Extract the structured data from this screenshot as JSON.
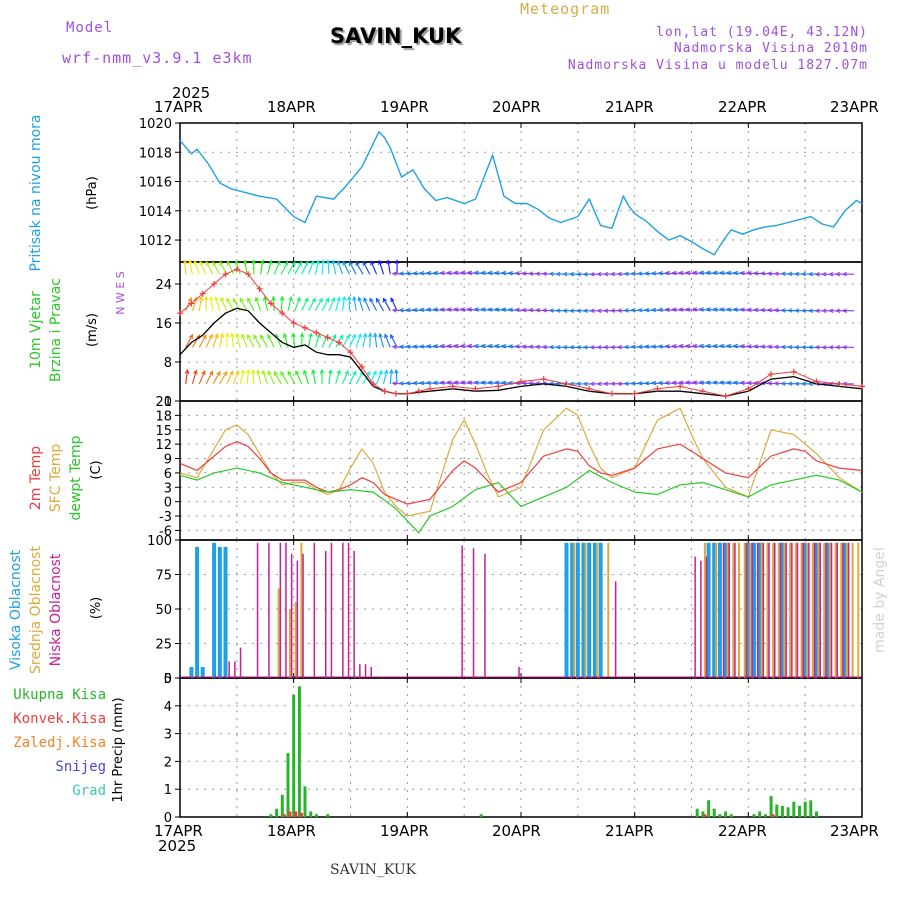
{
  "header": {
    "model_label": "Model",
    "model_name": "wrf-nmm_v3.9.1  e3km",
    "station_title": "SAVIN_KUK",
    "product": "Meteogram",
    "lonlat": "lon,lat (19.04E, 43.12N)",
    "elevation": "Nadmorska Visina 2010m",
    "model_elevation": "Nadmorska Visina u modelu 1827.07m",
    "footer_station": "SAVIN_KUK",
    "credit": "made by Angel"
  },
  "colors": {
    "pressure": "#1ea0e6",
    "wind_speed": "#000000",
    "gust": "#f03c3c",
    "t2m": "#f03c3c",
    "sfc": "#dcaa3c",
    "dewpoint": "#28c828",
    "cloud_high": "#1ea0e6",
    "cloud_mid": "#dcaa3c",
    "cloud_low": "#c81e96",
    "total_precip": "#28b428",
    "conv_precip": "#f03c3c",
    "frozen_precip": "#f08228",
    "snow": "#4646dc",
    "graupel": "#3cc8b4",
    "purple_text": "#a050dc",
    "orange_text": "#dcaa46"
  },
  "chart_data": [
    {
      "id": "pressure",
      "type": "line",
      "title": "Pritisak na nivou mora",
      "ylabel": "(hPa)",
      "ylim": [
        1010.5,
        1020
      ],
      "yticks": [
        1012,
        1014,
        1016,
        1018,
        1020
      ],
      "series": [
        {
          "name": "Pritisak na nivou mora",
          "x": [
            0,
            0.1,
            0.15,
            0.25,
            0.35,
            0.45,
            0.55,
            0.7,
            0.85,
            1.0,
            1.1,
            1.2,
            1.35,
            1.45,
            1.6,
            1.75,
            1.8,
            1.85,
            1.95,
            2.05,
            2.15,
            2.25,
            2.35,
            2.5,
            2.6,
            2.75,
            2.85,
            2.95,
            3.05,
            3.15,
            3.25,
            3.35,
            3.5,
            3.6,
            3.7,
            3.8,
            3.9,
            3.95,
            4.0,
            4.1,
            4.2,
            4.3,
            4.4,
            4.5,
            4.6,
            4.7,
            4.8,
            4.85,
            4.95,
            5.05,
            5.15,
            5.25,
            5.35,
            5.45,
            5.55,
            5.65,
            5.75,
            5.85,
            5.95,
            6.0
          ],
          "values": [
            1018.8,
            1017.9,
            1018.2,
            1017.2,
            1015.9,
            1015.5,
            1015.3,
            1015.0,
            1014.8,
            1013.6,
            1013.2,
            1015.0,
            1014.8,
            1015.6,
            1017.0,
            1019.4,
            1019.0,
            1018.3,
            1016.3,
            1016.8,
            1015.5,
            1014.7,
            1014.9,
            1014.5,
            1014.8,
            1017.8,
            1015.0,
            1014.5,
            1014.5,
            1014.1,
            1013.5,
            1013.2,
            1013.6,
            1014.8,
            1013.0,
            1012.8,
            1015.0,
            1014.3,
            1013.8,
            1013.3,
            1012.6,
            1012.0,
            1012.3,
            1011.9,
            1011.4,
            1011.0,
            1012.2,
            1012.7,
            1012.4,
            1012.7,
            1012.9,
            1013.0,
            1013.2,
            1013.4,
            1013.6,
            1013.1,
            1012.9,
            1014.0,
            1014.7,
            1014.5
          ]
        }
      ]
    },
    {
      "id": "wind",
      "type": "line",
      "title": "10m Vjetar Brzina i Pravac",
      "ylabel": "(m/s)",
      "ylim": [
        0,
        28.5
      ],
      "yticks": [
        0,
        8,
        16,
        24
      ],
      "direction_legend": "N W E S",
      "series": [
        {
          "name": "Brzina vjetra",
          "x": [
            0,
            0.1,
            0.2,
            0.3,
            0.4,
            0.5,
            0.6,
            0.7,
            0.8,
            0.9,
            1.0,
            1.1,
            1.2,
            1.3,
            1.4,
            1.5,
            1.6,
            1.7,
            1.8,
            1.9,
            2.0,
            2.1,
            2.2,
            2.4,
            2.6,
            2.8,
            3.0,
            3.2,
            3.4,
            3.6,
            3.8,
            4.0,
            4.2,
            4.4,
            4.6,
            4.8,
            5.0,
            5.2,
            5.4,
            5.6,
            5.8,
            6.0
          ],
          "values": [
            9.5,
            12.0,
            13.5,
            16.0,
            18.0,
            19.0,
            18.5,
            16.0,
            14.0,
            12.0,
            11.0,
            11.5,
            10.0,
            9.5,
            9.5,
            9.0,
            6.0,
            3.0,
            2.0,
            1.5,
            1.5,
            1.8,
            2.0,
            2.5,
            2.0,
            2.2,
            3.0,
            3.5,
            3.0,
            2.0,
            1.5,
            1.5,
            2.0,
            2.0,
            1.5,
            1.0,
            2.0,
            4.5,
            5.0,
            3.5,
            3.0,
            2.5
          ]
        },
        {
          "name": "Udari vjetra",
          "x": [
            0,
            0.1,
            0.2,
            0.3,
            0.4,
            0.5,
            0.6,
            0.7,
            0.8,
            0.9,
            1.0,
            1.1,
            1.2,
            1.3,
            1.4,
            1.5,
            1.6,
            1.7,
            1.8,
            1.9,
            2.0,
            2.1,
            2.2,
            2.4,
            2.6,
            2.8,
            3.0,
            3.2,
            3.4,
            3.6,
            3.8,
            4.0,
            4.2,
            4.4,
            4.6,
            4.8,
            5.0,
            5.2,
            5.4,
            5.6,
            5.8,
            6.0
          ],
          "values": [
            18.0,
            20.0,
            22.0,
            24.0,
            26.0,
            27.0,
            26.0,
            23.0,
            20.0,
            18.0,
            16.0,
            15.0,
            14.0,
            13.0,
            12.0,
            10.0,
            7.0,
            3.5,
            2.0,
            1.5,
            1.5,
            2.0,
            2.5,
            3.0,
            2.5,
            3.0,
            4.0,
            4.5,
            3.5,
            2.5,
            1.5,
            1.5,
            2.5,
            3.0,
            2.0,
            1.0,
            2.5,
            5.5,
            6.0,
            4.0,
            3.5,
            3.0
          ]
        }
      ]
    },
    {
      "id": "temperature",
      "type": "line",
      "title": "2m Temp / SFC Temp / dewpt Temp",
      "ylabel": "(C)",
      "ylim": [
        -8,
        21
      ],
      "yticks": [
        -6,
        -3,
        0,
        3,
        6,
        9,
        12,
        15,
        18,
        21
      ],
      "series": [
        {
          "name": "2m Temp",
          "x": [
            0,
            0.15,
            0.3,
            0.4,
            0.5,
            0.6,
            0.7,
            0.8,
            0.9,
            1.0,
            1.1,
            1.2,
            1.3,
            1.4,
            1.5,
            1.6,
            1.7,
            1.8,
            1.9,
            2.0,
            2.2,
            2.4,
            2.5,
            2.6,
            2.7,
            2.8,
            3.0,
            3.2,
            3.4,
            3.5,
            3.6,
            3.7,
            3.8,
            4.0,
            4.2,
            4.4,
            4.5,
            4.6,
            4.7,
            4.8,
            5.0,
            5.2,
            5.4,
            5.5,
            5.6,
            5.8,
            6.0
          ],
          "values": [
            8.0,
            6.5,
            9.5,
            11.5,
            12.5,
            11.5,
            9.0,
            6.0,
            4.5,
            4.5,
            4.5,
            3.0,
            2.0,
            2.5,
            3.5,
            5.0,
            4.0,
            1.5,
            0.5,
            -0.5,
            0.5,
            6.5,
            8.5,
            7.0,
            4.5,
            2.0,
            4.0,
            9.5,
            11.0,
            10.5,
            7.5,
            6.0,
            5.5,
            7.0,
            11.0,
            12.0,
            10.5,
            9.0,
            7.5,
            6.0,
            5.0,
            9.5,
            11.0,
            10.5,
            8.5,
            7.0,
            6.5
          ]
        },
        {
          "name": "SFC Temp",
          "x": [
            0,
            0.15,
            0.3,
            0.4,
            0.5,
            0.6,
            0.7,
            0.8,
            0.9,
            1.0,
            1.1,
            1.2,
            1.3,
            1.4,
            1.5,
            1.6,
            1.7,
            1.8,
            1.9,
            2.0,
            2.2,
            2.4,
            2.5,
            2.6,
            2.7,
            2.8,
            3.0,
            3.2,
            3.4,
            3.5,
            3.6,
            3.7,
            3.8,
            4.0,
            4.2,
            4.4,
            4.5,
            4.6,
            4.7,
            4.8,
            5.0,
            5.2,
            5.4,
            5.5,
            5.6,
            5.8,
            6.0
          ],
          "values": [
            6.0,
            5.0,
            11.0,
            15.0,
            16.0,
            14.0,
            10.0,
            6.0,
            3.5,
            4.0,
            4.0,
            2.5,
            1.5,
            2.5,
            7.0,
            11.0,
            8.0,
            2.0,
            -1.0,
            -3.0,
            -2.0,
            13.0,
            17.0,
            12.0,
            6.0,
            1.0,
            3.0,
            15.0,
            19.5,
            18.0,
            12.0,
            7.0,
            5.0,
            7.0,
            17.0,
            19.5,
            14.0,
            9.0,
            6.0,
            3.0,
            1.0,
            15.0,
            14.0,
            12.0,
            10.0,
            5.0,
            2.0
          ]
        },
        {
          "name": "dewpt Temp",
          "x": [
            0,
            0.15,
            0.3,
            0.5,
            0.7,
            0.9,
            1.1,
            1.3,
            1.5,
            1.7,
            1.9,
            2.0,
            2.1,
            2.2,
            2.4,
            2.6,
            2.8,
            3.0,
            3.2,
            3.4,
            3.6,
            3.8,
            4.0,
            4.2,
            4.4,
            4.6,
            4.8,
            5.0,
            5.2,
            5.4,
            5.6,
            5.8,
            6.0
          ],
          "values": [
            5.5,
            4.5,
            6.0,
            7.0,
            6.0,
            4.0,
            3.0,
            2.0,
            2.5,
            2.0,
            -1.5,
            -4.0,
            -6.5,
            -3.0,
            -1.0,
            2.5,
            4.0,
            -1.0,
            1.0,
            3.0,
            6.5,
            4.0,
            2.0,
            1.5,
            3.5,
            4.0,
            2.5,
            1.0,
            3.5,
            4.5,
            5.5,
            4.5,
            2.0
          ]
        }
      ]
    },
    {
      "id": "clouds",
      "type": "bar",
      "title": "Visoka Oblacnost / Srednja Oblacnost / Niska Oblacnost",
      "ylabel": "(%)",
      "ylim": [
        0,
        100
      ],
      "yticks": [
        0,
        25,
        50,
        75,
        100
      ],
      "series": [
        {
          "name": "Visoka Oblacnost",
          "x": [
            0.1,
            0.15,
            0.2,
            0.3,
            0.35,
            0.4,
            3.4,
            3.45,
            3.5,
            3.55,
            3.6,
            3.65,
            3.7,
            4.65,
            4.7,
            4.75,
            4.8,
            5.0,
            5.05,
            5.1,
            5.3,
            5.5,
            5.6,
            5.7,
            5.85
          ],
          "values": [
            8,
            95,
            8,
            98,
            95,
            95,
            98,
            98,
            98,
            98,
            98,
            98,
            98,
            98,
            98,
            98,
            98,
            98,
            98,
            98,
            98,
            98,
            98,
            98,
            98
          ]
        },
        {
          "name": "Srednja Oblacnost",
          "x": [
            0.85,
            0.95,
            1.0,
            1.05,
            3.45,
            3.55,
            3.65,
            3.75,
            4.6,
            4.7,
            4.8,
            4.85,
            4.9,
            4.95,
            5.0,
            5.1,
            5.15,
            5.2,
            5.25,
            5.3,
            5.35,
            5.4,
            5.45,
            5.5,
            5.55,
            5.6,
            5.65,
            5.7,
            5.75,
            5.8,
            5.85,
            5.9,
            5.95
          ],
          "values": [
            65,
            50,
            55,
            98,
            98,
            98,
            98,
            98,
            98,
            98,
            98,
            98,
            98,
            98,
            98,
            98,
            98,
            98,
            98,
            98,
            98,
            98,
            98,
            98,
            98,
            98,
            98,
            98,
            98,
            98,
            98,
            98,
            98
          ]
        },
        {
          "name": "Niska Oblacnost",
          "x": [
            0.45,
            0.5,
            0.55,
            0.7,
            0.8,
            0.9,
            0.95,
            1.0,
            1.05,
            1.1,
            1.2,
            1.3,
            1.35,
            1.45,
            1.5,
            1.55,
            1.6,
            1.65,
            1.7,
            2.5,
            2.6,
            2.7,
            3.0,
            3.85,
            4.55,
            4.6,
            4.65,
            4.8,
            4.85,
            4.9,
            5.0,
            5.05,
            5.1,
            5.15,
            5.2,
            5.25,
            5.3,
            5.35,
            5.4,
            5.45,
            5.5,
            5.55,
            5.6,
            5.65,
            5.7,
            5.75,
            5.8,
            5.85,
            5.9
          ],
          "values": [
            12,
            12,
            22,
            98,
            98,
            98,
            98,
            90,
            85,
            90,
            98,
            92,
            98,
            98,
            98,
            92,
            10,
            10,
            8,
            96,
            94,
            90,
            8,
            70,
            88,
            85,
            88,
            98,
            98,
            98,
            98,
            98,
            98,
            98,
            98,
            98,
            98,
            98,
            98,
            98,
            98,
            98,
            98,
            98,
            98,
            98,
            98,
            98,
            98
          ]
        }
      ]
    },
    {
      "id": "precip",
      "type": "bar",
      "title": "1hr Precip",
      "ylabel": "1hr Precip (mm)",
      "ylim": [
        0,
        5
      ],
      "yticks": [
        0,
        1,
        2,
        3,
        4,
        5
      ],
      "legend": [
        "Ukupna Kisa",
        "Konvek.Kisa",
        "Zaledj.Kisa",
        "Snijeg",
        "Grad"
      ],
      "series": [
        {
          "name": "Ukupna Kisa",
          "x": [
            0.8,
            0.85,
            0.9,
            0.95,
            1.0,
            1.05,
            1.1,
            1.15,
            1.2,
            1.3,
            2.65,
            4.55,
            4.6,
            4.65,
            4.7,
            4.75,
            4.8,
            4.85,
            5.05,
            5.1,
            5.15,
            5.2,
            5.25,
            5.3,
            5.35,
            5.4,
            5.45,
            5.5,
            5.55,
            5.6
          ],
          "values": [
            0.1,
            0.3,
            0.8,
            2.3,
            4.4,
            4.7,
            1.1,
            0.2,
            0.1,
            0.1,
            0.1,
            0.3,
            0.2,
            0.6,
            0.3,
            0.1,
            0.2,
            0.1,
            0.1,
            0.2,
            0.1,
            0.75,
            0.45,
            0.4,
            0.35,
            0.55,
            0.4,
            0.55,
            0.6,
            0.2
          ]
        },
        {
          "name": "Konvek.Kisa",
          "x": [
            0.9,
            0.95,
            1.0,
            1.05,
            4.6,
            5.2
          ],
          "values": [
            0.1,
            0.2,
            0.2,
            0.15,
            0.1,
            0.1
          ]
        },
        {
          "name": "Zaledj.Kisa",
          "x": [],
          "values": []
        },
        {
          "name": "Snijeg",
          "x": [],
          "values": []
        },
        {
          "name": "Grad",
          "x": [],
          "values": []
        }
      ]
    }
  ],
  "axis": {
    "year": "2025",
    "days": [
      "17APR",
      "18APR",
      "19APR",
      "20APR",
      "21APR",
      "22APR",
      "23APR"
    ]
  }
}
